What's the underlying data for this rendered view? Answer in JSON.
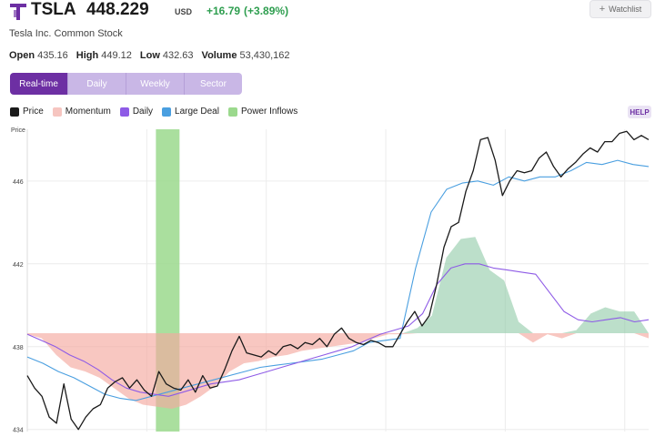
{
  "header": {
    "ticker": "TSLA",
    "price": "448.229",
    "currency": "USD",
    "change": "+16.79",
    "change_pct": "(+3.89%)",
    "change_color": "#2e9e4f",
    "logo_icon": "tesla-logo-icon"
  },
  "watchlist": {
    "label": "Watchlist",
    "icon": "plus-icon"
  },
  "company": "Tesla Inc. Common Stock",
  "stats": {
    "open_label": "Open",
    "open": "435.16",
    "high_label": "High",
    "high": "449.12",
    "low_label": "Low",
    "low": "432.63",
    "volume_label": "Volume",
    "volume": "53,430,162"
  },
  "tabs": [
    {
      "label": "Real-time",
      "active": true
    },
    {
      "label": "Weekly",
      "active": false
    },
    {
      "label": "Sector",
      "active": false
    }
  ],
  "tab_daily": {
    "label": "Daily"
  },
  "legend": {
    "price": {
      "label": "Price",
      "color": "#1a1a1a"
    },
    "momentum": {
      "label": "Momentum",
      "color": "#f6c5c0"
    },
    "daily": {
      "label": "Daily",
      "color": "#8e5be6"
    },
    "large_deal": {
      "label": "Large Deal",
      "color": "#4a9fe0"
    },
    "power_inflows": {
      "label": "Power Inflows",
      "color": "#9bd98d"
    }
  },
  "help": "HELP",
  "chart_data": {
    "type": "line",
    "ylabel": "Price",
    "yticks": [
      434,
      438,
      442,
      446
    ],
    "ylim": [
      433.9,
      448.5
    ],
    "baseline": 438.65,
    "power_inflow_window": [
      0.207,
      0.245
    ],
    "price": [
      436.6,
      436.0,
      435.6,
      434.6,
      434.3,
      436.2,
      434.5,
      434.0,
      434.6,
      435.0,
      435.2,
      436.0,
      436.3,
      436.5,
      436.0,
      436.4,
      435.9,
      435.6,
      436.8,
      436.2,
      436.0,
      435.9,
      436.4,
      435.8,
      436.6,
      436.0,
      436.1,
      436.9,
      437.8,
      438.5,
      437.7,
      437.6,
      437.5,
      437.8,
      437.6,
      438.0,
      438.1,
      437.9,
      438.2,
      438.1,
      438.4,
      438.0,
      438.6,
      438.9,
      438.4,
      438.2,
      438.1,
      438.3,
      438.2,
      438.0,
      438.0,
      438.6,
      439.2,
      439.7,
      439.0,
      439.5,
      441.0,
      442.8,
      443.8,
      444.0,
      445.5,
      446.5,
      448.0,
      448.1,
      447.0,
      445.3,
      446.0,
      446.5,
      446.4,
      446.5,
      447.1,
      447.4,
      446.7,
      446.2,
      446.6,
      446.9,
      447.3,
      447.6,
      447.4,
      447.9,
      447.9,
      448.3,
      448.4,
      448.0,
      448.2,
      448.0
    ],
    "daily": [
      438.6,
      438.3,
      438.0,
      437.6,
      437.3,
      436.9,
      436.4,
      436.0,
      435.8,
      435.7,
      435.6,
      435.8,
      436.0,
      436.2,
      436.3,
      436.4,
      436.6,
      436.8,
      437.0,
      437.2,
      437.4,
      437.6,
      437.8,
      438.0,
      438.3,
      438.6,
      438.8,
      439.0,
      439.6,
      441.0,
      441.8,
      442.0,
      442.0,
      441.8,
      441.7,
      441.6,
      441.5,
      440.6,
      439.7,
      439.3,
      439.2,
      439.3,
      439.4,
      439.2,
      439.3
    ],
    "large_deal": [
      437.5,
      437.2,
      436.8,
      436.5,
      436.1,
      435.7,
      435.5,
      435.4,
      435.6,
      435.8,
      436.0,
      436.2,
      436.4,
      436.6,
      436.8,
      437.0,
      437.1,
      437.2,
      437.3,
      437.4,
      437.6,
      437.8,
      438.2,
      438.3,
      438.4,
      441.8,
      444.5,
      445.6,
      445.9,
      446.0,
      445.8,
      446.2,
      446.0,
      446.2,
      446.2,
      446.5,
      446.9,
      446.8,
      447.0,
      446.8,
      446.7
    ],
    "momentum": [
      438.6,
      438.4,
      437.6,
      437.0,
      436.8,
      436.5,
      436.0,
      435.5,
      435.2,
      435.1,
      435.0,
      435.2,
      435.6,
      436.1,
      436.8,
      437.2,
      437.3,
      437.5,
      437.6,
      437.8,
      437.9,
      438.0,
      438.1,
      438.2,
      438.4,
      438.6,
      438.6,
      438.9,
      439.5,
      442.3,
      443.2,
      443.3,
      441.7,
      441.2,
      439.2,
      438.2,
      438.6,
      438.4,
      438.8,
      439.6,
      439.9,
      439.7,
      439.7,
      438.4
    ]
  }
}
